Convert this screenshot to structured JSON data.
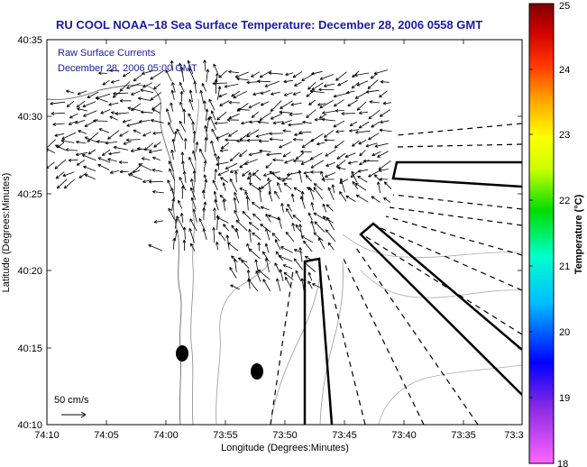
{
  "title": "RU COOL  NOAA−18  Sea Surface Temperature:  December 28, 2006 0558 GMT",
  "annotation": {
    "line1": "Raw Surface Currents",
    "line2": "December 28, 2006 05:00 GMT"
  },
  "scale_label": "50 cm/s",
  "x_axis": {
    "label": "Longitude (Degrees:Minutes)",
    "ticks": [
      "74:10",
      "74:05",
      "74:00",
      "73:55",
      "73:50",
      "73:45",
      "73:40",
      "73:35",
      "73:3"
    ]
  },
  "y_axis": {
    "label": "Latitude (Degrees:Minutes)",
    "ticks": [
      "40:10",
      "40:15",
      "40:20",
      "40:25",
      "40:30",
      "40:35"
    ]
  },
  "colorbar": {
    "label": "Temperature (°C)",
    "ticks": [
      "18",
      "19",
      "20",
      "21",
      "22",
      "23",
      "24",
      "25"
    ],
    "colors": [
      "#ff66ff",
      "#8a2be2",
      "#0000ff",
      "#00bfff",
      "#00ffcc",
      "#00dd00",
      "#ccff00",
      "#ffff00",
      "#ffa500",
      "#ff3300",
      "#cc0000",
      "#800000"
    ]
  },
  "chart_data": {
    "type": "map",
    "xlim": [
      "74:10",
      "73:30"
    ],
    "ylim": [
      "40:10",
      "40:35"
    ],
    "color_range_c": [
      18,
      25
    ],
    "grid": false
  }
}
